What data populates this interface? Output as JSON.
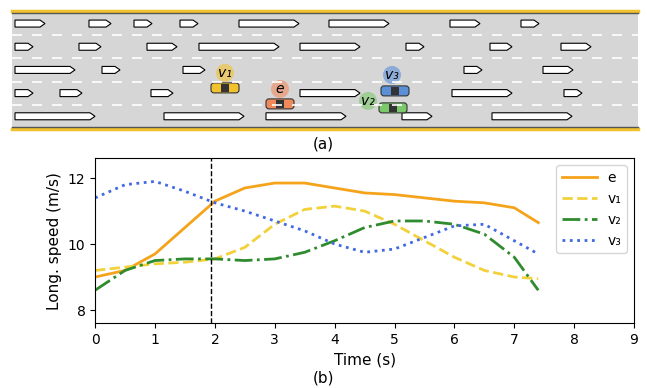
{
  "chart_data": {
    "type": "line",
    "x_label": "Time (s)",
    "y_label": "Long. speed (m/s)",
    "x": [
      0,
      0.5,
      1,
      1.5,
      2,
      2.5,
      3,
      3.5,
      4,
      4.5,
      5,
      5.5,
      6,
      6.5,
      7,
      7.4
    ],
    "series": [
      {
        "name": "e",
        "color": "#f5a31a",
        "line_style": "solid",
        "values": [
          9.0,
          9.2,
          9.7,
          10.5,
          11.3,
          11.7,
          11.85,
          11.85,
          11.7,
          11.55,
          11.5,
          11.4,
          11.3,
          11.25,
          11.1,
          10.65
        ]
      },
      {
        "name": "v₁",
        "color": "#f2d13a",
        "line_style": "dashed",
        "values": [
          9.2,
          9.3,
          9.4,
          9.45,
          9.55,
          9.9,
          10.6,
          11.05,
          11.15,
          11.0,
          10.6,
          10.1,
          9.6,
          9.2,
          9.0,
          8.95
        ]
      },
      {
        "name": "v₂",
        "color": "#2e8b2e",
        "line_style": "dashdot",
        "values": [
          8.6,
          9.2,
          9.5,
          9.55,
          9.55,
          9.5,
          9.55,
          9.75,
          10.1,
          10.5,
          10.7,
          10.7,
          10.6,
          10.3,
          9.6,
          8.6
        ]
      },
      {
        "name": "v₃",
        "color": "#4169e1",
        "line_style": "dotted",
        "values": [
          11.4,
          11.8,
          11.9,
          11.6,
          11.25,
          11.0,
          10.7,
          10.4,
          10.0,
          9.75,
          9.85,
          10.2,
          10.55,
          10.6,
          10.1,
          9.7
        ]
      }
    ],
    "vline": 1.93,
    "xlim": [
      0,
      9
    ],
    "xticks": [
      0,
      1,
      2,
      3,
      4,
      5,
      6,
      7,
      8,
      9
    ],
    "ylim": [
      7.6,
      12.6
    ],
    "yticks": [
      8,
      10,
      12
    ],
    "legend": "upper right",
    "grid": false
  },
  "diagram": {
    "panel_labels": [
      "(a)",
      "(b)"
    ],
    "vehicles": [
      {
        "label": "v₁",
        "color": "#f2c12e"
      },
      {
        "label": "e",
        "color": "#f08a5d"
      },
      {
        "label": "v₂",
        "color": "#7cc96b"
      },
      {
        "label": "v₃",
        "color": "#5b8fd6"
      }
    ]
  }
}
